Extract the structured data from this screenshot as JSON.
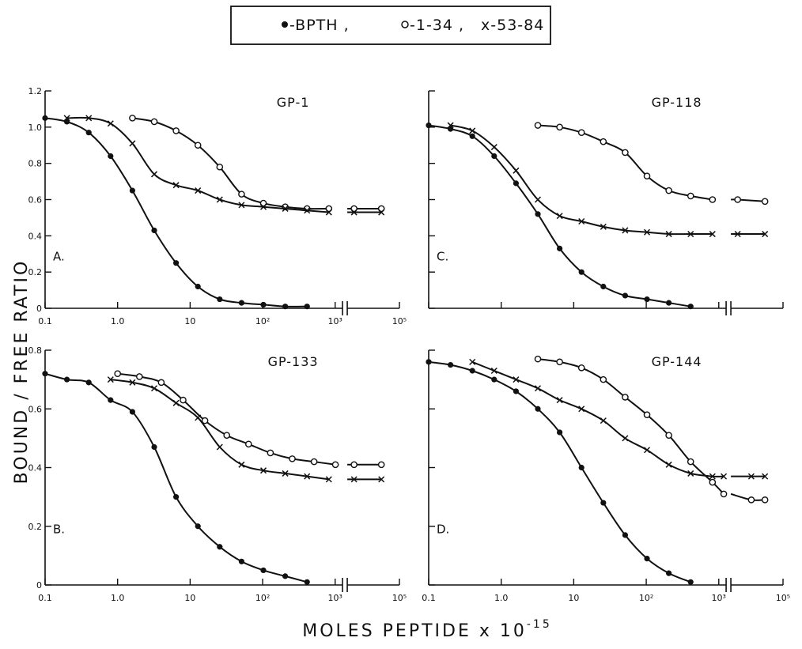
{
  "legend": {
    "entries": [
      {
        "symbol": "filled-circle",
        "text": "-BPTH ,"
      },
      {
        "symbol": "open-circle",
        "text": "-1-34 ,"
      },
      {
        "symbol": "cross",
        "text": "x-53-84"
      }
    ]
  },
  "ylabel": "BOUND / FREE RATIO",
  "xlabel": "MOLES    PEPTIDE  x  10",
  "xlabel_exp": "-15",
  "chart_data": [
    {
      "type": "line",
      "panel": "A.",
      "title": "GP-1",
      "ylim": [
        0,
        1.2
      ],
      "yticks": [
        "0",
        "0.2",
        "0.4",
        "0.6",
        "0.8",
        "1.0",
        "1.2"
      ],
      "xticks": [
        "0.1",
        "1.0",
        "10",
        "10²",
        "10³",
        "10⁵"
      ],
      "series": [
        {
          "name": "BPTH",
          "marker": "filled-circle",
          "x": [
            0.1,
            0.2,
            0.4,
            0.8,
            1.6,
            3.2,
            6.4,
            12.8,
            25.6,
            51.2,
            102.4,
            204.8,
            409.6
          ],
          "y": [
            1.05,
            1.03,
            0.97,
            0.84,
            0.65,
            0.43,
            0.25,
            0.12,
            0.05,
            0.03,
            0.02,
            0.01,
            0.01
          ]
        },
        {
          "name": "1-34",
          "marker": "open-circle",
          "x": [
            1.6,
            3.2,
            6.4,
            12.8,
            25.6,
            51.2,
            102.4,
            204.8,
            409.6,
            819.2,
            10000,
            40000
          ],
          "y": [
            1.05,
            1.03,
            0.98,
            0.9,
            0.78,
            0.63,
            0.58,
            0.56,
            0.55,
            0.55,
            0.55,
            0.55
          ]
        },
        {
          "name": "53-84",
          "marker": "cross",
          "x": [
            0.2,
            0.4,
            0.8,
            1.6,
            3.2,
            6.4,
            12.8,
            25.6,
            51.2,
            102.4,
            204.8,
            409.6,
            819.2,
            10000,
            40000
          ],
          "y": [
            1.05,
            1.05,
            1.02,
            0.91,
            0.74,
            0.68,
            0.65,
            0.6,
            0.57,
            0.56,
            0.55,
            0.54,
            0.53,
            0.53,
            0.53
          ]
        }
      ]
    },
    {
      "type": "line",
      "panel": "C.",
      "title": "GP-118",
      "ylim": [
        0,
        1.2
      ],
      "yticks": [],
      "xticks": [],
      "series": [
        {
          "name": "BPTH",
          "marker": "filled-circle",
          "x": [
            0.1,
            0.2,
            0.4,
            0.8,
            1.6,
            3.2,
            6.4,
            12.8,
            25.6,
            51.2,
            102.4,
            204.8,
            409.6
          ],
          "y": [
            1.01,
            0.99,
            0.95,
            0.84,
            0.69,
            0.52,
            0.33,
            0.2,
            0.12,
            0.07,
            0.05,
            0.03,
            0.01
          ]
        },
        {
          "name": "1-34",
          "marker": "open-circle",
          "x": [
            3.2,
            6.4,
            12.8,
            25.6,
            51.2,
            102.4,
            204.8,
            409.6,
            819.2,
            10000,
            40000
          ],
          "y": [
            1.01,
            1.0,
            0.97,
            0.92,
            0.86,
            0.73,
            0.65,
            0.62,
            0.6,
            0.6,
            0.59
          ]
        },
        {
          "name": "53-84",
          "marker": "cross",
          "x": [
            0.2,
            0.4,
            0.8,
            1.6,
            3.2,
            6.4,
            12.8,
            25.6,
            51.2,
            102.4,
            204.8,
            409.6,
            819.2,
            10000,
            40000
          ],
          "y": [
            1.01,
            0.98,
            0.89,
            0.76,
            0.6,
            0.51,
            0.48,
            0.45,
            0.43,
            0.42,
            0.41,
            0.41,
            0.41,
            0.41,
            0.41
          ]
        }
      ]
    },
    {
      "type": "line",
      "panel": "B.",
      "title": "GP-133",
      "ylim": [
        0,
        0.8
      ],
      "yticks": [
        "0",
        "0.2",
        "0.4",
        "0.6",
        "0.8"
      ],
      "xticks": [
        "0.1",
        "1.0",
        "10",
        "10²",
        "10³",
        "10⁵"
      ],
      "series": [
        {
          "name": "BPTH",
          "marker": "filled-circle",
          "x": [
            0.1,
            0.2,
            0.4,
            0.8,
            1.6,
            3.2,
            6.4,
            12.8,
            25.6,
            51.2,
            102.4,
            204.8,
            409.6
          ],
          "y": [
            0.72,
            0.7,
            0.69,
            0.63,
            0.59,
            0.47,
            0.3,
            0.2,
            0.13,
            0.08,
            0.05,
            0.03,
            0.01
          ]
        },
        {
          "name": "1-34",
          "marker": "open-circle",
          "x": [
            1.0,
            2.0,
            4.0,
            8.0,
            16,
            32,
            64,
            128,
            256,
            512,
            1024,
            10000,
            40000
          ],
          "y": [
            0.72,
            0.71,
            0.69,
            0.63,
            0.56,
            0.51,
            0.48,
            0.45,
            0.43,
            0.42,
            0.41,
            0.41,
            0.41
          ]
        },
        {
          "name": "53-84",
          "marker": "cross",
          "x": [
            0.8,
            1.6,
            3.2,
            6.4,
            12.8,
            25.6,
            51.2,
            102.4,
            204.8,
            409.6,
            819.2,
            10000,
            40000
          ],
          "y": [
            0.7,
            0.69,
            0.67,
            0.62,
            0.57,
            0.47,
            0.41,
            0.39,
            0.38,
            0.37,
            0.36,
            0.36,
            0.36
          ]
        }
      ]
    },
    {
      "type": "line",
      "panel": "D.",
      "title": "GP-144",
      "ylim": [
        0,
        0.8
      ],
      "yticks": [],
      "xticks": [
        "0.1",
        "1.0",
        "10",
        "10²",
        "10³",
        "10⁵"
      ],
      "series": [
        {
          "name": "BPTH",
          "marker": "filled-circle",
          "x": [
            0.1,
            0.2,
            0.4,
            0.8,
            1.6,
            3.2,
            6.4,
            12.8,
            25.6,
            51.2,
            102.4,
            204.8,
            409.6
          ],
          "y": [
            0.76,
            0.75,
            0.73,
            0.7,
            0.66,
            0.6,
            0.52,
            0.4,
            0.28,
            0.17,
            0.09,
            0.04,
            0.01
          ]
        },
        {
          "name": "1-34",
          "marker": "open-circle",
          "x": [
            3.2,
            6.4,
            12.8,
            25.6,
            51.2,
            102.4,
            204.8,
            409.6,
            819.2,
            1638.4,
            20000,
            40000
          ],
          "y": [
            0.77,
            0.76,
            0.74,
            0.7,
            0.64,
            0.58,
            0.51,
            0.42,
            0.35,
            0.31,
            0.29,
            0.29
          ]
        },
        {
          "name": "53-84",
          "marker": "cross",
          "x": [
            0.4,
            0.8,
            1.6,
            3.2,
            6.4,
            12.8,
            25.6,
            51.2,
            102.4,
            204.8,
            409.6,
            819.2,
            1638.4,
            20000,
            40000
          ],
          "y": [
            0.76,
            0.73,
            0.7,
            0.67,
            0.63,
            0.6,
            0.56,
            0.5,
            0.46,
            0.41,
            0.38,
            0.37,
            0.37,
            0.37,
            0.37
          ]
        }
      ]
    }
  ]
}
